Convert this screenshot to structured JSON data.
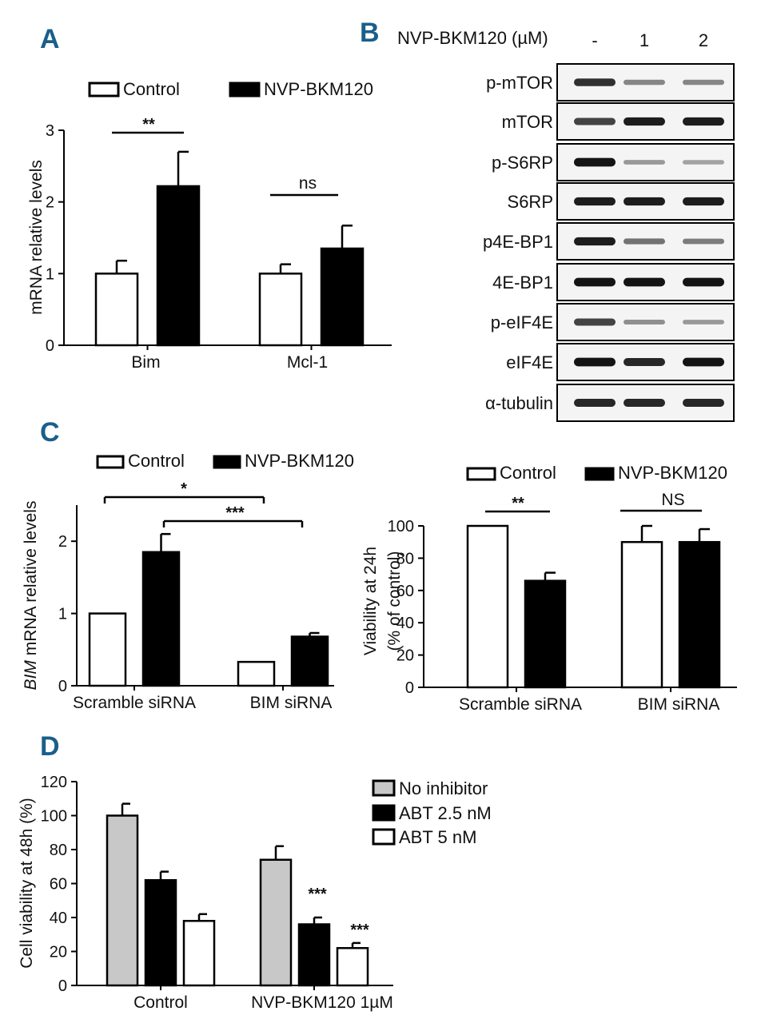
{
  "panel_labels": {
    "a": "A",
    "b": "B",
    "c": "C",
    "d": "D"
  },
  "colors": {
    "control": "#ffffff",
    "treated": "#000000",
    "no_inhibitor": "#c8c8c8",
    "panel_letter": "#1a5f8a"
  },
  "chart_data": [
    {
      "panel": "A",
      "type": "bar",
      "title": "",
      "xlabel": "",
      "ylabel": "mRNA relative levels",
      "ylim": [
        0,
        3
      ],
      "yticks": [
        0,
        1,
        2,
        3
      ],
      "categories": [
        "Bim",
        "Mcl-1"
      ],
      "series": [
        {
          "name": "Control",
          "color": "#ffffff",
          "values": [
            1.0,
            1.0
          ],
          "errors": [
            0.18,
            0.13
          ]
        },
        {
          "name": "NVP-BKM120",
          "color": "#000000",
          "values": [
            2.22,
            1.35
          ],
          "errors": [
            0.48,
            0.32
          ]
        }
      ],
      "legend": [
        "Control",
        "NVP-BKM120"
      ],
      "annotations": [
        {
          "text": "**",
          "group": 0
        },
        {
          "text": "ns",
          "group": 1
        }
      ]
    },
    {
      "panel": "B",
      "type": "blot",
      "header": "NVP-BKM120 (µM)",
      "lanes": [
        "-",
        "1",
        "2"
      ],
      "rows": [
        {
          "label": "p-mTOR",
          "intensity": [
            0.8,
            0.35,
            0.35
          ]
        },
        {
          "label": "mTOR",
          "intensity": [
            0.7,
            0.9,
            0.9
          ]
        },
        {
          "label": "p-S6RP",
          "intensity": [
            0.95,
            0.25,
            0.2
          ]
        },
        {
          "label": "S6RP",
          "intensity": [
            0.9,
            0.9,
            0.9
          ]
        },
        {
          "label": "p4E-BP1",
          "intensity": [
            0.9,
            0.45,
            0.4
          ]
        },
        {
          "label": "4E-BP1",
          "intensity": [
            0.95,
            0.95,
            0.95
          ]
        },
        {
          "label": "p-eIF4E",
          "intensity": [
            0.7,
            0.3,
            0.25
          ]
        },
        {
          "label": "eIF4E",
          "intensity": [
            0.95,
            0.85,
            0.95
          ]
        },
        {
          "label": "α-tubulin",
          "intensity": [
            0.85,
            0.85,
            0.85
          ]
        }
      ]
    },
    {
      "panel": "C-left",
      "type": "bar",
      "title": "",
      "xlabel": "",
      "ylabel_italic": "BIM",
      "ylabel": "mRNA relative levels",
      "ylim": [
        0,
        2.5
      ],
      "yticks": [
        0,
        1,
        2
      ],
      "categories": [
        "Scramble siRNA",
        "BIM siRNA"
      ],
      "series": [
        {
          "name": "Control",
          "color": "#ffffff",
          "values": [
            1.0,
            0.33
          ],
          "errors": [
            0,
            0
          ]
        },
        {
          "name": "NVP-BKM120",
          "color": "#000000",
          "values": [
            1.85,
            0.68
          ],
          "errors": [
            0.25,
            0.05
          ]
        }
      ],
      "legend": [
        "Control",
        "NVP-BKM120"
      ],
      "annotations": [
        {
          "text": "*",
          "from": [
            0,
            0
          ],
          "to": [
            1,
            0
          ]
        },
        {
          "text": "***",
          "from": [
            0,
            1
          ],
          "to": [
            1,
            1
          ]
        }
      ]
    },
    {
      "panel": "C-right",
      "type": "bar",
      "title": "",
      "xlabel": "",
      "ylabel": "Viability at 24h",
      "ylabel2": "(% of control)",
      "ylim": [
        0,
        100
      ],
      "yticks": [
        0,
        20,
        40,
        60,
        80,
        100
      ],
      "categories": [
        "Scramble siRNA",
        "BIM siRNA"
      ],
      "series": [
        {
          "name": "Control",
          "color": "#ffffff",
          "values": [
            100,
            90
          ],
          "errors": [
            0,
            10
          ]
        },
        {
          "name": "NVP-BKM120",
          "color": "#000000",
          "values": [
            66,
            90
          ],
          "errors": [
            5,
            8
          ]
        }
      ],
      "legend": [
        "Control",
        "NVP-BKM120"
      ],
      "annotations": [
        {
          "text": "**",
          "group": 0
        },
        {
          "text": "NS",
          "group": 1
        }
      ]
    },
    {
      "panel": "D",
      "type": "bar",
      "title": "",
      "xlabel": "",
      "ylabel": "Cell viability at 48h (%)",
      "ylim": [
        0,
        120
      ],
      "yticks": [
        0,
        20,
        40,
        60,
        80,
        100,
        120
      ],
      "categories": [
        "Control",
        "NVP-BKM120 1µM"
      ],
      "series": [
        {
          "name": "No inhibitor",
          "color": "#c8c8c8",
          "values": [
            100,
            74
          ],
          "errors": [
            7,
            8
          ]
        },
        {
          "name": "ABT 2.5 nM",
          "color": "#000000",
          "values": [
            62,
            36
          ],
          "errors": [
            5,
            4
          ]
        },
        {
          "name": "ABT 5 nM",
          "color": "#ffffff",
          "values": [
            38,
            22
          ],
          "errors": [
            4,
            3
          ]
        }
      ],
      "legend": [
        "No inhibitor",
        "ABT 2.5 nM",
        "ABT 5 nM"
      ],
      "annotations": [
        {
          "text": "***",
          "group": 1,
          "series": 1
        },
        {
          "text": "***",
          "group": 1,
          "series": 2
        }
      ]
    }
  ]
}
